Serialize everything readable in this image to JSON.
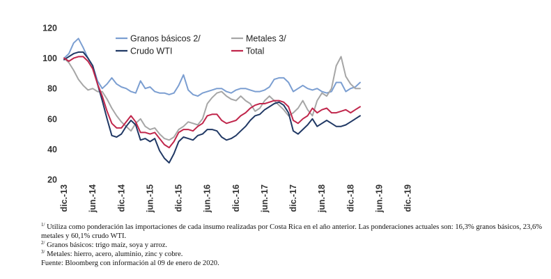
{
  "chart_data": {
    "type": "line",
    "title": "",
    "xlabel": "",
    "ylabel": "",
    "ylim": [
      20,
      120
    ],
    "yticks": [
      20,
      40,
      60,
      80,
      100,
      120
    ],
    "x_tick_labels": [
      "dic.-13",
      "jun.-14",
      "dic.-14",
      "jun.-15",
      "dic.-15",
      "jun.-16",
      "dic.-16",
      "jun.-17",
      "dic.-17",
      "jun.-18",
      "dic.-18",
      "jun.-19",
      "dic.-19"
    ],
    "x_start": "2013-12",
    "x_end": "2019-12",
    "grid": false,
    "legend_position": "top",
    "series": [
      {
        "name": "Granos básicos 2/",
        "color": "#7b9ed1",
        "values": [
          100,
          103,
          110,
          113,
          107,
          100,
          95,
          85,
          80,
          83,
          87,
          83,
          81,
          80,
          78,
          77,
          85,
          80,
          81,
          78,
          77,
          77,
          76,
          77,
          82,
          89,
          79,
          76,
          75,
          77,
          78,
          79,
          80,
          80,
          78,
          77,
          79,
          80,
          80,
          79,
          78,
          78,
          79,
          81,
          86,
          87,
          87,
          84,
          78,
          80,
          82,
          80,
          79,
          80,
          78,
          77,
          78,
          84,
          84,
          78,
          80,
          81,
          84
        ]
      },
      {
        "name": "Metales 3/",
        "color": "#a6a6a6",
        "values": [
          100,
          97,
          92,
          86,
          82,
          79,
          80,
          78,
          78,
          73,
          67,
          62,
          58,
          55,
          52,
          57,
          60,
          55,
          53,
          54,
          50,
          47,
          46,
          48,
          53,
          55,
          58,
          57,
          56,
          60,
          70,
          74,
          77,
          78,
          75,
          73,
          72,
          75,
          72,
          70,
          65,
          67,
          72,
          75,
          72,
          69,
          66,
          62,
          64,
          67,
          72,
          66,
          62,
          72,
          77,
          75,
          80,
          95,
          101,
          88,
          83,
          80,
          80
        ]
      },
      {
        "name": "Crudo WTI",
        "color": "#203864",
        "values": [
          99,
          101,
          103,
          104,
          104,
          100,
          95,
          83,
          72,
          60,
          49,
          48,
          50,
          55,
          59,
          56,
          46,
          47,
          45,
          47,
          39,
          34,
          31,
          37,
          45,
          48,
          47,
          46,
          49,
          50,
          53,
          53,
          52,
          48,
          46,
          47,
          49,
          52,
          55,
          59,
          62,
          63,
          66,
          68,
          70,
          71,
          69,
          64,
          52,
          50,
          53,
          56,
          60,
          55,
          57,
          59,
          57,
          55,
          55,
          56,
          58,
          60,
          62
        ]
      },
      {
        "name": "Total",
        "color": "#c0264b",
        "values": [
          100,
          98,
          100,
          101,
          101,
          98,
          93,
          83,
          75,
          65,
          57,
          54,
          54,
          58,
          62,
          58,
          51,
          51,
          50,
          51,
          47,
          43,
          41,
          45,
          51,
          53,
          53,
          52,
          55,
          57,
          62,
          63,
          63,
          59,
          57,
          58,
          59,
          62,
          64,
          67,
          69,
          70,
          70,
          71,
          72,
          72,
          71,
          68,
          59,
          57,
          60,
          62,
          67,
          64,
          66,
          67,
          64,
          64,
          65,
          66,
          64,
          66,
          68
        ]
      }
    ]
  },
  "notes": {
    "n1_mark": "1/",
    "n1_text": " Utiliza como ponderación las importaciones de cada insumo realizadas por Costa Rica en el año anterior. Las ponderaciones actuales son: 16,3% granos básicos, 23,6% metales y 60,1% crudo WTI.",
    "n2_mark": "2/",
    "n2_text": " Granos básicos: trigo maíz, soya y arroz.",
    "n3_mark": "3/",
    "n3_text": " Metales: hierro, acero, aluminio, zinc y cobre.",
    "source": "Fuente: Bloomberg con información al 09 de enero de 2020."
  }
}
